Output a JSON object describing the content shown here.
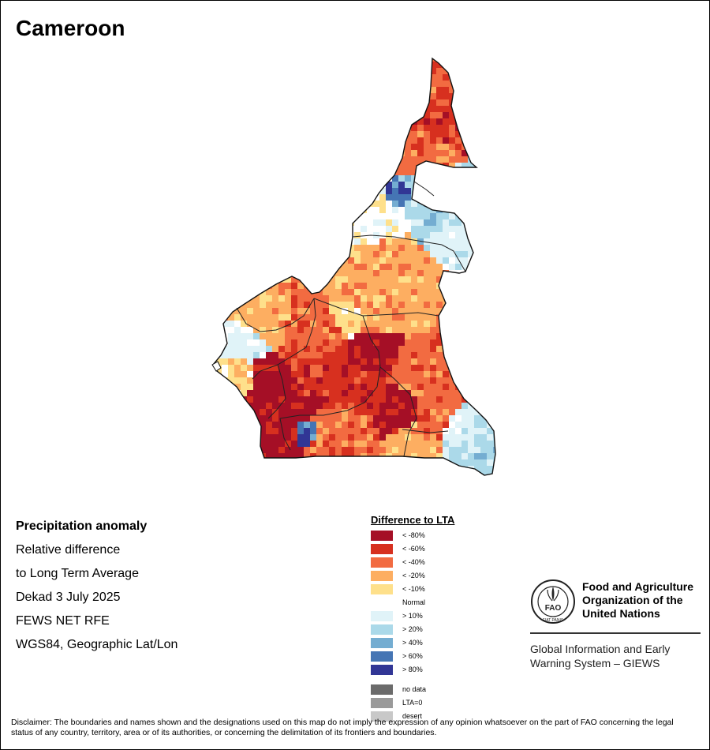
{
  "map": {
    "title": "Cameroon"
  },
  "info": {
    "heading": "Precipitation anomaly",
    "line1": "Relative difference",
    "line2": "to Long Term Average",
    "line3": "Dekad 3 July 2025",
    "line4": "FEWS NET RFE",
    "line5": "WGS84, Geographic Lat/Lon"
  },
  "legend": {
    "title": "Difference to LTA",
    "items": [
      {
        "label": "< -80%",
        "color": "#a50f26"
      },
      {
        "label": "< -60%",
        "color": "#d7301f"
      },
      {
        "label": "< -40%",
        "color": "#f26b41"
      },
      {
        "label": "< -20%",
        "color": "#fdae61"
      },
      {
        "label": "< -10%",
        "color": "#fee08b"
      },
      {
        "label": "Normal",
        "color": "#ffffff"
      },
      {
        "label": "> 10%",
        "color": "#e0f3f8"
      },
      {
        "label": "> 20%",
        "color": "#abd9e9"
      },
      {
        "label": "> 40%",
        "color": "#74add1"
      },
      {
        "label": "> 60%",
        "color": "#4575b4"
      },
      {
        "label": "> 80%",
        "color": "#313695"
      }
    ],
    "extra": [
      {
        "label": "no data",
        "color": "#6b6b6b"
      },
      {
        "label": "LTA=0",
        "color": "#9a9a9a"
      },
      {
        "label": "desert",
        "color": "#c8c8c8"
      }
    ]
  },
  "fao": {
    "emblem_text": "FAO",
    "motto": "FIAT PANIS",
    "name_line1": "Food and Agriculture",
    "name_line2": "Organization of the",
    "name_line3": "United Nations",
    "giews_line1": "Global Information and Early",
    "giews_line2": "Warning System – GIEWS"
  },
  "disclaimer": "Disclaimer: The boundaries and names shown and the designations used on this map do not imply the expression of any opinion whatsoever on the part of FAO concerning the legal status of any country, territory, area or of its authorities, or concerning the delimitation of its frontiers and boundaries."
}
